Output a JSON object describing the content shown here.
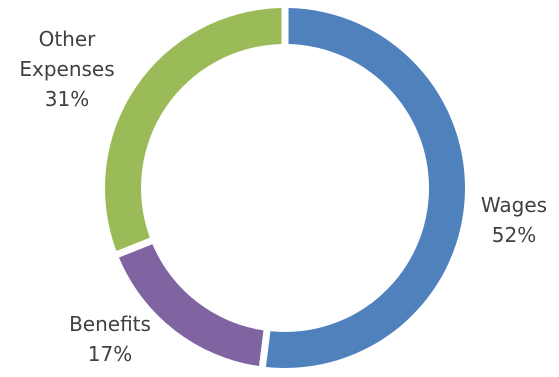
{
  "chart_data": {
    "type": "pie",
    "variant": "donut",
    "title": "",
    "start_angle_deg": 0,
    "direction": "clockwise",
    "slices": [
      {
        "name": "Wages",
        "value": 52,
        "percent_label": "52%",
        "color": "#4F81BD"
      },
      {
        "name": "Benefits",
        "value": 17,
        "percent_label": "17%",
        "color": "#8064A2"
      },
      {
        "name": "Other Expenses",
        "name_lines": [
          "Other",
          "Expenses"
        ],
        "value": 31,
        "percent_label": "31%",
        "color": "#9BBB59"
      }
    ],
    "legend": "none",
    "label_color": "#404040",
    "background": "#FFFFFF"
  }
}
